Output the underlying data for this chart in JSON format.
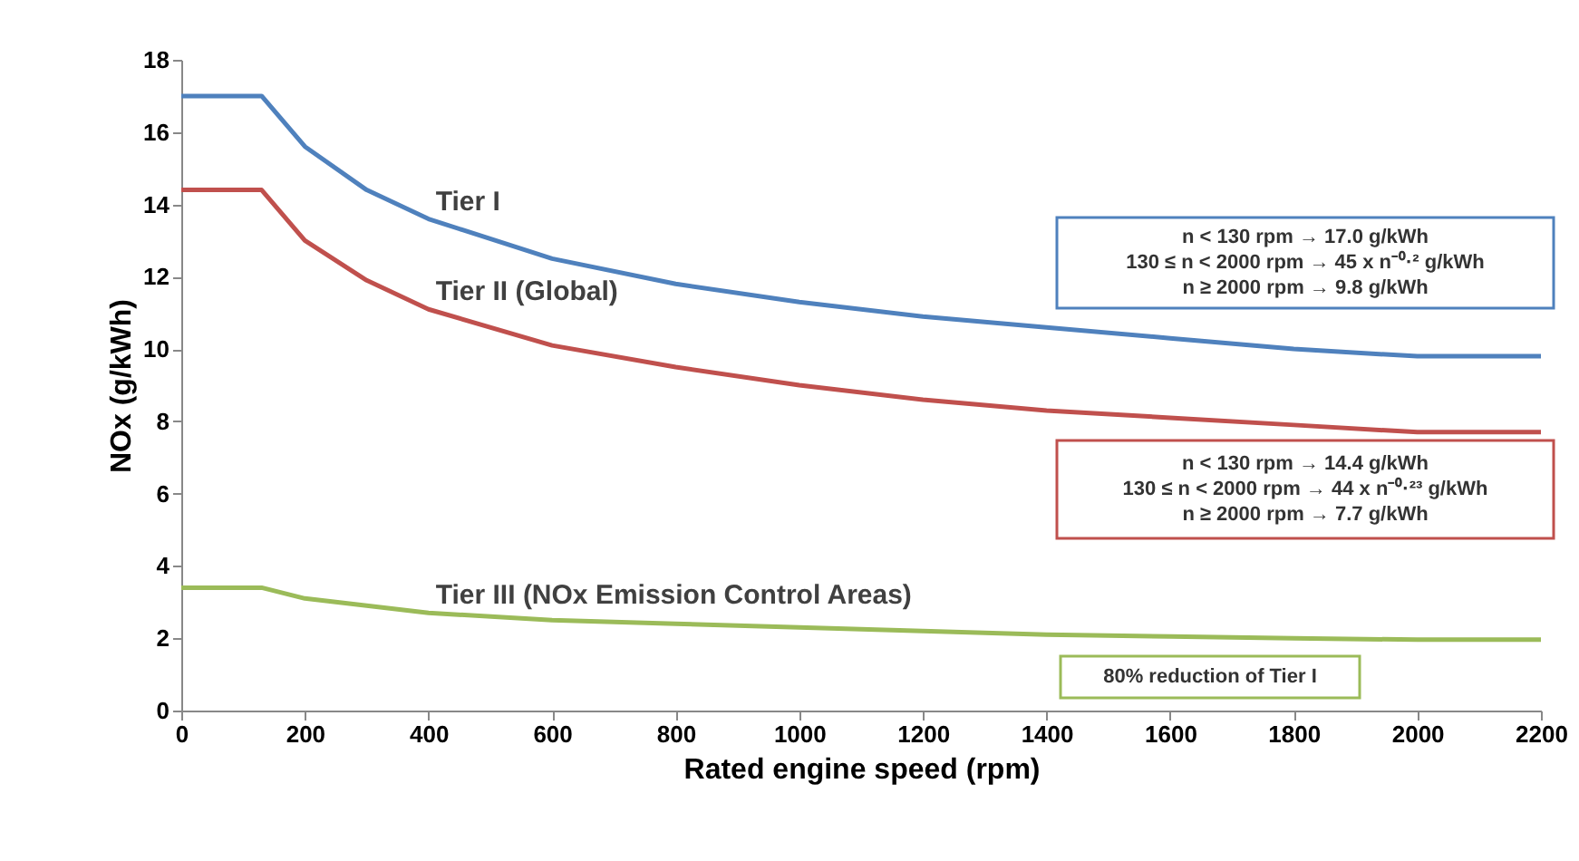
{
  "chart_data": {
    "type": "line",
    "xlabel": "Rated engine speed (rpm)",
    "ylabel": "NOx (g/kWh)",
    "x": [
      0,
      130,
      200,
      300,
      400,
      600,
      800,
      1000,
      1200,
      1400,
      1600,
      1800,
      2000,
      2200
    ],
    "series": [
      {
        "name": "Tier I",
        "color": "#4f81bd",
        "values": [
          17.0,
          17.0,
          15.6,
          14.4,
          13.6,
          12.5,
          11.8,
          11.3,
          10.9,
          10.6,
          10.3,
          10.0,
          9.8,
          9.8
        ]
      },
      {
        "name": "Tier II (Global)",
        "color": "#c0504d",
        "values": [
          14.4,
          14.4,
          13.0,
          11.9,
          11.1,
          10.1,
          9.5,
          9.0,
          8.6,
          8.3,
          8.1,
          7.9,
          7.7,
          7.7
        ]
      },
      {
        "name": "Tier III (NOx Emission Control Areas)",
        "color": "#9bbb59",
        "values": [
          3.4,
          3.4,
          3.1,
          2.9,
          2.7,
          2.5,
          2.4,
          2.3,
          2.2,
          2.1,
          2.05,
          2.0,
          1.96,
          1.96
        ]
      }
    ],
    "annotations": [
      "n < 130 rpm → 17.0 g/kWh\n130 ≤ n < 2000 rpm → 45 x n⁻⁰·² g/kWh\nn ≥ 2000 rpm → 9.8 g/kWh",
      "n < 130 rpm → 14.4 g/kWh\n130 ≤ n < 2000 rpm → 44 x n⁻⁰·²³ g/kWh\nn ≥ 2000 rpm → 7.7 g/kWh",
      "80% reduction of Tier I"
    ],
    "xlim": [
      0,
      2200
    ],
    "xticks": [
      0,
      200,
      400,
      600,
      800,
      1000,
      1200,
      1400,
      1600,
      1800,
      2000,
      2200
    ],
    "ylim": [
      0,
      18
    ],
    "yticks": [
      0,
      2,
      4,
      6,
      8,
      10,
      12,
      14,
      16,
      18
    ],
    "grid": false,
    "legend": false,
    "marker": "none",
    "line_style": "solid"
  }
}
